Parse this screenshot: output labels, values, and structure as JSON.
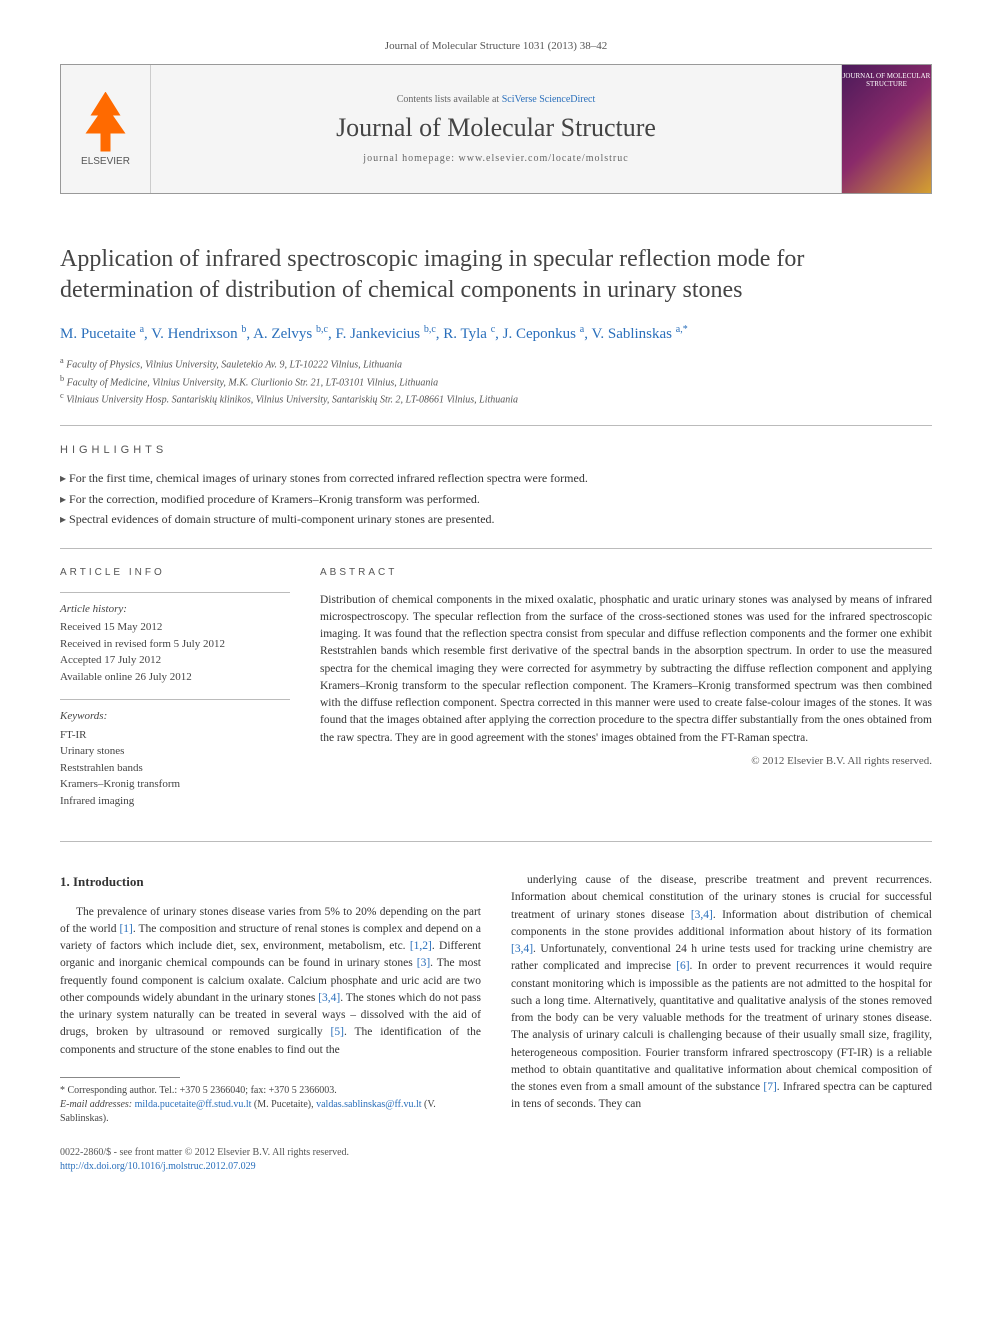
{
  "journal_ref": "Journal of Molecular Structure 1031 (2013) 38–42",
  "header": {
    "publisher": "ELSEVIER",
    "contents_prefix": "Contents lists available at ",
    "contents_link": "SciVerse ScienceDirect",
    "journal_title": "Journal of Molecular Structure",
    "homepage_prefix": "journal homepage: ",
    "homepage_url": "www.elsevier.com/locate/molstruc",
    "cover_text": "JOURNAL OF MOLECULAR STRUCTURE"
  },
  "article_title": "Application of infrared spectroscopic imaging in specular reflection mode for determination of distribution of chemical components in urinary stones",
  "authors_html": "M. Pucetaite <sup>a</sup>, V. Hendrixson <sup>b</sup>, A. Zelvys <sup>b,c</sup>, F. Jankevicius <sup>b,c</sup>, R. Tyla <sup>c</sup>, J. Ceponkus <sup>a</sup>, V. Sablinskas <sup>a,*</sup>",
  "affiliations": [
    "a Faculty of Physics, Vilnius University, Sauletekio Av. 9, LT-10222 Vilnius, Lithuania",
    "b Faculty of Medicine, Vilnius University, M.K. Ciurlionio Str. 21, LT-03101 Vilnius, Lithuania",
    "c Vilniaus University Hosp. Santariskių klinikos, Vilnius University, Santariskių Str. 2, LT-08661 Vilnius, Lithuania"
  ],
  "highlights_label": "HIGHLIGHTS",
  "highlights": [
    "For the first time, chemical images of urinary stones from corrected infrared reflection spectra were formed.",
    "For the correction, modified procedure of Kramers–Kronig transform was performed.",
    "Spectral evidences of domain structure of multi-component urinary stones are presented."
  ],
  "article_info_label": "ARTICLE INFO",
  "history_heading": "Article history:",
  "history": [
    "Received 15 May 2012",
    "Received in revised form 5 July 2012",
    "Accepted 17 July 2012",
    "Available online 26 July 2012"
  ],
  "keywords_heading": "Keywords:",
  "keywords": [
    "FT-IR",
    "Urinary stones",
    "Reststrahlen bands",
    "Kramers–Kronig transform",
    "Infrared imaging"
  ],
  "abstract_label": "ABSTRACT",
  "abstract": "Distribution of chemical components in the mixed oxalatic, phosphatic and uratic urinary stones was analysed by means of infrared microspectroscopy. The specular reflection from the surface of the cross-sectioned stones was used for the infrared spectroscopic imaging. It was found that the reflection spectra consist from specular and diffuse reflection components and the former one exhibit Reststrahlen bands which resemble first derivative of the spectral bands in the absorption spectrum. In order to use the measured spectra for the chemical imaging they were corrected for asymmetry by subtracting the diffuse reflection component and applying Kramers–Kronig transform to the specular reflection component. The Kramers–Kronig transformed spectrum was then combined with the diffuse reflection component. Spectra corrected in this manner were used to create false-colour images of the stones. It was found that the images obtained after applying the correction procedure to the spectra differ substantially from the ones obtained from the raw spectra. They are in good agreement with the stones' images obtained from the FT-Raman spectra.",
  "copyright": "© 2012 Elsevier B.V. All rights reserved.",
  "intro_heading": "1. Introduction",
  "intro_col1": "The prevalence of urinary stones disease varies from 5% to 20% depending on the part of the world [1]. The composition and structure of renal stones is complex and depend on a variety of factors which include diet, sex, environment, metabolism, etc. [1,2]. Different organic and inorganic chemical compounds can be found in urinary stones [3]. The most frequently found component is calcium oxalate. Calcium phosphate and uric acid are two other compounds widely abundant in the urinary stones [3,4]. The stones which do not pass the urinary system naturally can be treated in several ways – dissolved with the aid of drugs, broken by ultrasound or removed surgically [5]. The identification of the components and structure of the stone enables to find out the",
  "intro_col2": "underlying cause of the disease, prescribe treatment and prevent recurrences. Information about chemical constitution of the urinary stones is crucial for successful treatment of urinary stones disease [3,4]. Information about distribution of chemical components in the stone provides additional information about history of its formation [3,4]. Unfortunately, conventional 24 h urine tests used for tracking urine chemistry are rather complicated and imprecise [6]. In order to prevent recurrences it would require constant monitoring which is impossible as the patients are not admitted to the hospital for such a long time. Alternatively, quantitative and qualitative analysis of the stones removed from the body can be very valuable methods for the treatment of urinary stones disease. The analysis of urinary calculi is challenging because of their usually small size, fragility, heterogeneous composition. Fourier transform infrared spectroscopy (FT-IR) is a reliable method to obtain quantitative and qualitative information about chemical composition of the stones even from a small amount of the substance [7]. Infrared spectra can be captured in tens of seconds. They can",
  "footnotes": {
    "corresponding": "* Corresponding author. Tel.: +370 5 2366040; fax: +370 5 2366003.",
    "emails_label": "E-mail addresses: ",
    "email1": "milda.pucetaite@ff.stud.vu.lt",
    "email1_name": " (M. Pucetaite), ",
    "email2": "valdas.sablinskas@ff.vu.lt",
    "email2_name": " (V. Sablinskas)."
  },
  "footer": {
    "issn": "0022-2860/$ - see front matter © 2012 Elsevier B.V. All rights reserved.",
    "doi": "http://dx.doi.org/10.1016/j.molstruc.2012.07.029"
  }
}
